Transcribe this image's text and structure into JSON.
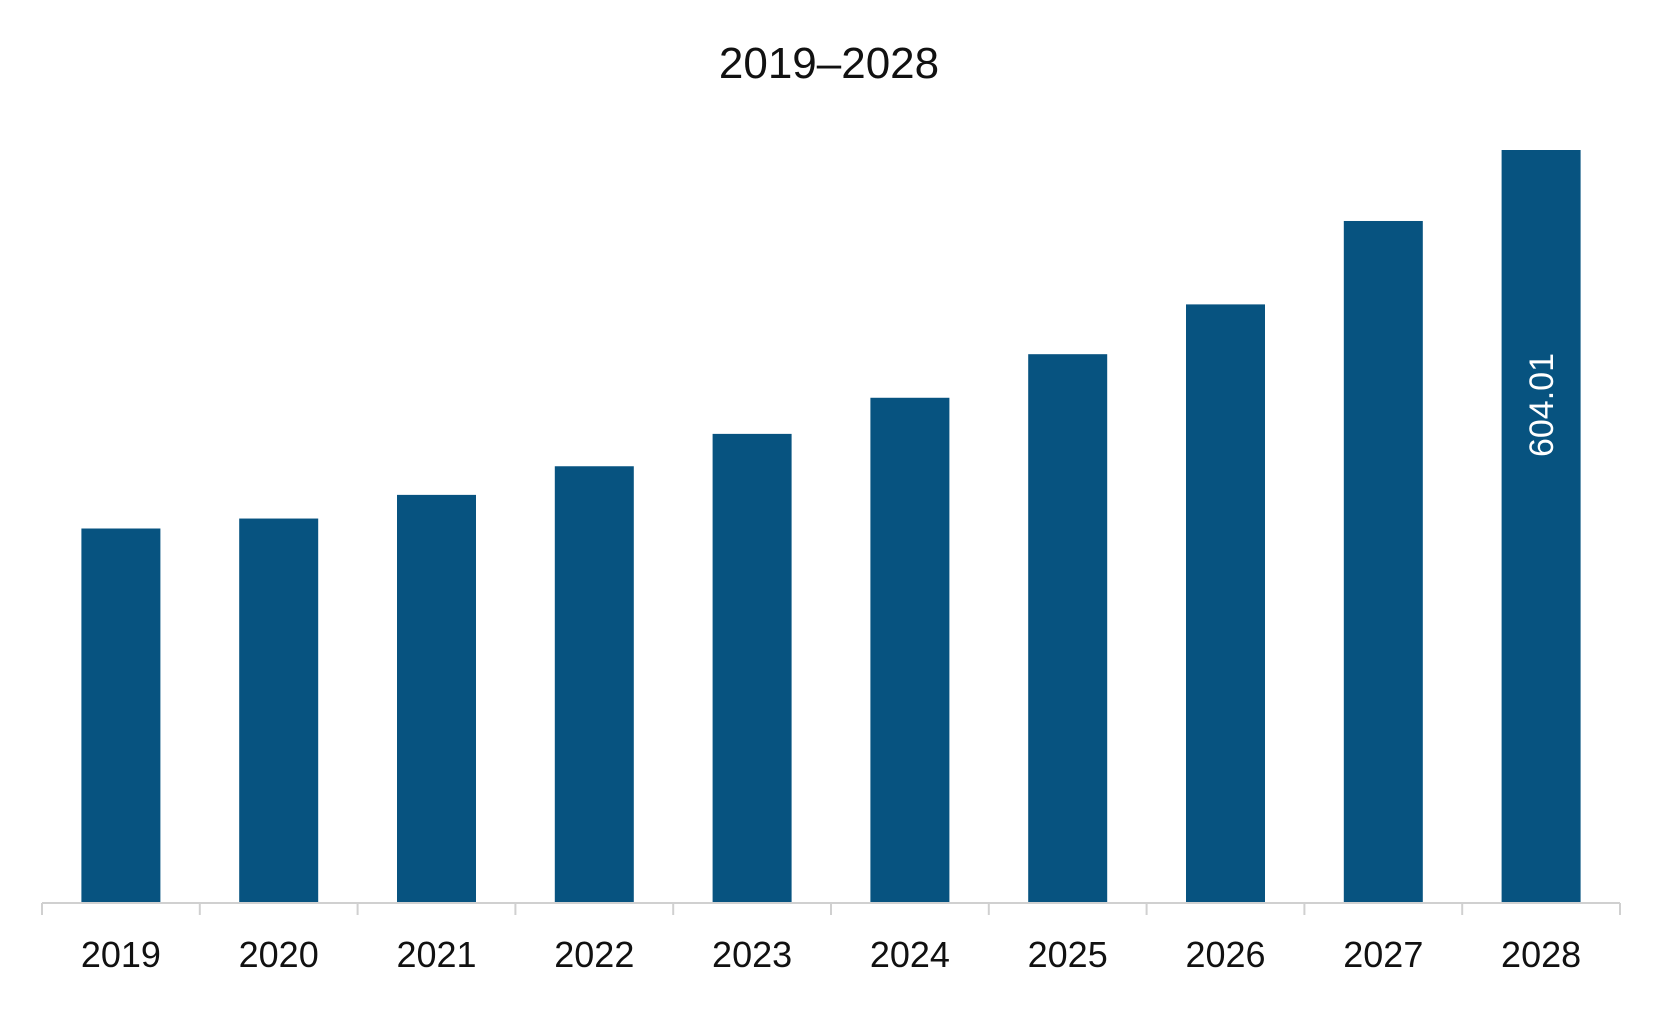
{
  "chart_data": {
    "type": "bar",
    "title": "2019–2028",
    "xlabel": "",
    "ylabel": "",
    "categories": [
      "2019",
      "2020",
      "2021",
      "2022",
      "2023",
      "2024",
      "2025",
      "2026",
      "2027",
      "2028"
    ],
    "values": [
      300,
      308,
      327,
      350,
      376,
      405,
      440,
      480,
      547,
      604.01
    ],
    "ylim": [
      0,
      604.01
    ],
    "grid": false,
    "legend": "none",
    "data_labels": [
      {
        "category": "2028",
        "text": "604.01"
      }
    ],
    "colors": {
      "bar": "#075380",
      "axis": "#d0d0d0",
      "text": "#111111",
      "data_label": "#ffffff"
    }
  }
}
